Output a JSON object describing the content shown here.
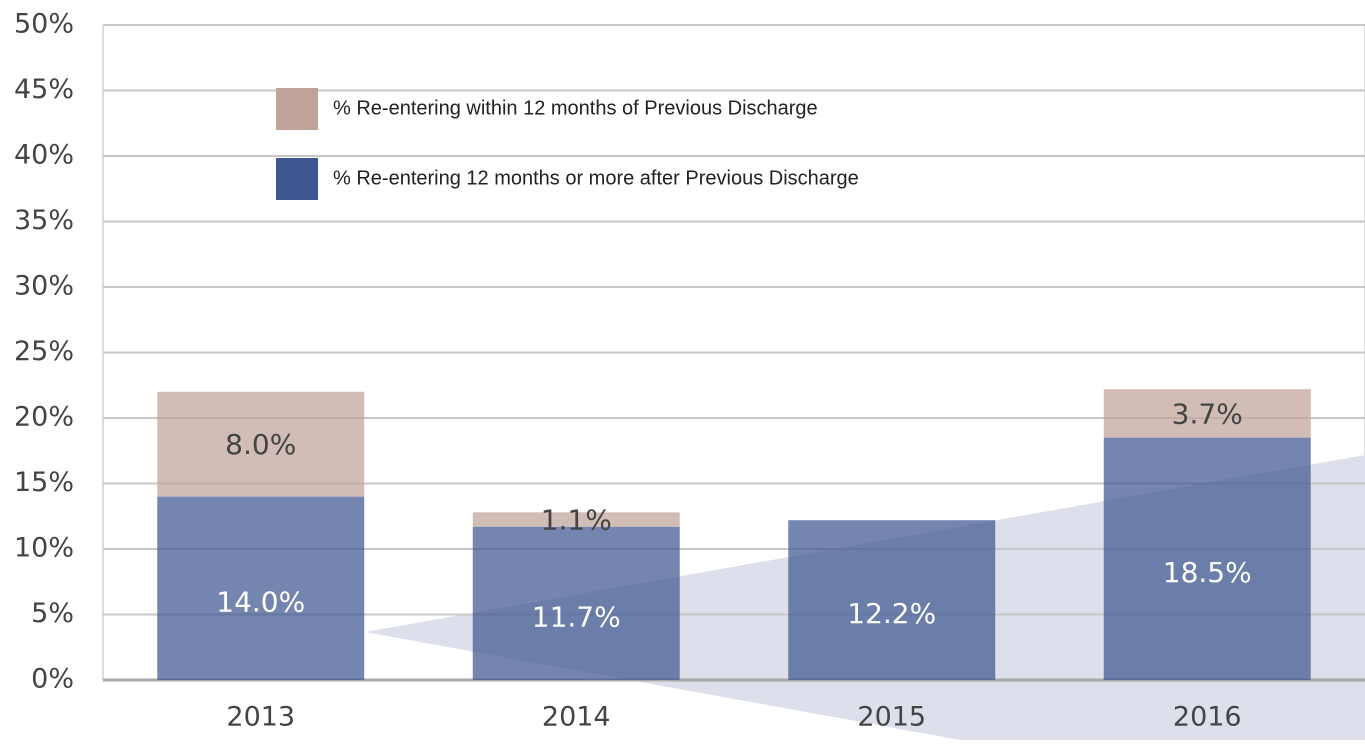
{
  "chart_data": {
    "type": "stacked_bar",
    "categories": [
      "2013",
      "2014",
      "2015",
      "2016"
    ],
    "series": [
      {
        "name": "% Re-entering within 12 months of Previous Discharge",
        "color": "#bfa39a",
        "values": [
          8.0,
          1.1,
          null,
          3.7
        ],
        "value_labels": [
          "8.0%",
          "1.1%",
          null,
          "3.7%"
        ]
      },
      {
        "name": "% Re-entering 12 months or more after Previous Discharge",
        "color": "#3f5790",
        "values": [
          14.0,
          11.7,
          12.2,
          18.5
        ],
        "value_labels": [
          "14.0%",
          "11.7%",
          "12.2%",
          "18.5%"
        ]
      }
    ],
    "ylim": [
      0,
      50
    ],
    "yticks": [
      {
        "value": 0,
        "label": "0%"
      },
      {
        "value": 5,
        "label": "5%"
      },
      {
        "value": 10,
        "label": "10%"
      },
      {
        "value": 15,
        "label": "15%"
      },
      {
        "value": 20,
        "label": "20%"
      },
      {
        "value": 25,
        "label": "25%"
      },
      {
        "value": 30,
        "label": "30%"
      },
      {
        "value": 35,
        "label": "35%"
      },
      {
        "value": 40,
        "label": "40%"
      },
      {
        "value": 45,
        "label": "45%"
      },
      {
        "value": 50,
        "label": "50%"
      }
    ],
    "grid": true,
    "legend": "top-left"
  }
}
